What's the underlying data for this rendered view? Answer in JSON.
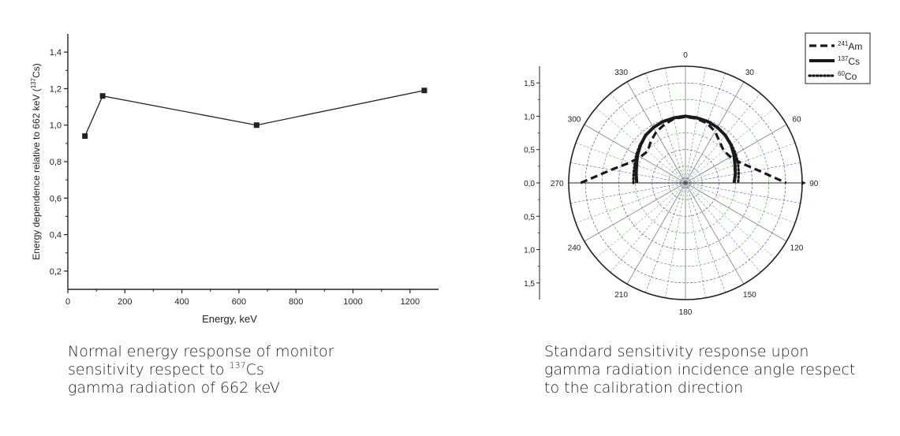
{
  "chart_data": [
    {
      "type": "line",
      "xlabel": "Energy, keV",
      "ylabel_prefix": "Energy dependence relative to 662 keV (",
      "ylabel_sup": "137",
      "ylabel_suffix": "Cs)",
      "xlim": [
        0,
        1300
      ],
      "ylim": [
        0.1,
        1.5
      ],
      "x_ticks": [
        0,
        200,
        400,
        600,
        800,
        1000,
        1200
      ],
      "x_tick_labels": [
        "0",
        "200",
        "400",
        "600",
        "800",
        "1000",
        "1200"
      ],
      "y_ticks": [
        0.2,
        0.4,
        0.6,
        0.8,
        1.0,
        1.2,
        1.4
      ],
      "y_tick_labels": [
        "0,2",
        "0,4",
        "0,6",
        "0,8",
        "1,0",
        "1,2",
        "1,4"
      ],
      "grid": false,
      "series": [
        {
          "x": [
            60,
            122,
            662,
            1250
          ],
          "y": [
            0.94,
            1.16,
            1.0,
            1.19
          ]
        }
      ]
    },
    {
      "type": "polar",
      "r_range": [
        0,
        1.75
      ],
      "angle_labels": [
        "0",
        "30",
        "60",
        "90",
        "120",
        "150",
        "180",
        "210",
        "240",
        "270",
        "300",
        "330"
      ],
      "r_tick_labels_upper": [
        "0,0",
        "0,5",
        "1,0",
        "1,5"
      ],
      "r_tick_labels_lower": [
        "0,5",
        "1,0",
        "1,5"
      ],
      "grid": true,
      "legend": "top-right",
      "series": [
        {
          "name_sup": "241",
          "name_base": "Am",
          "style": "dashed",
          "angles": [
            270,
            280,
            290,
            300,
            310,
            320,
            330,
            340,
            350,
            0,
            10,
            20,
            30,
            40,
            50,
            60,
            70,
            80,
            90
          ],
          "r": [
            1.57,
            1.13,
            0.89,
            0.78,
            0.74,
            0.81,
            0.88,
            0.93,
            0.98,
            0.99,
            0.98,
            0.95,
            0.89,
            0.8,
            0.75,
            0.78,
            0.88,
            1.1,
            1.51
          ]
        },
        {
          "name_sup": "137",
          "name_base": "Cs",
          "style": "solid",
          "angles": [
            270,
            280,
            290,
            300,
            310,
            320,
            330,
            340,
            350,
            0,
            10,
            20,
            30,
            40,
            50,
            60,
            70,
            80,
            90
          ],
          "r": [
            0.73,
            0.75,
            0.78,
            0.83,
            0.88,
            0.93,
            0.96,
            0.98,
            0.99,
            1.0,
            0.99,
            0.98,
            0.96,
            0.93,
            0.89,
            0.84,
            0.79,
            0.76,
            0.73
          ]
        },
        {
          "name_sup": "60",
          "name_base": "Co",
          "style": "dotted",
          "angles": [
            270,
            280,
            290,
            300,
            310,
            320,
            330,
            340,
            350,
            0,
            10,
            20,
            30,
            40,
            50,
            60,
            70,
            80,
            90
          ],
          "r": [
            0.78,
            0.79,
            0.81,
            0.85,
            0.89,
            0.93,
            0.96,
            0.98,
            0.99,
            1.0,
            0.99,
            0.98,
            0.96,
            0.93,
            0.9,
            0.87,
            0.84,
            0.81,
            0.79
          ]
        }
      ]
    }
  ],
  "captions": {
    "left": {
      "line1": "Normal energy response of monitor",
      "line2_prefix": "sensitivity respect to ",
      "line2_sup": "137",
      "line2_suffix": "Cs",
      "line3": "gamma radiation of 662 keV"
    },
    "right": {
      "line1": "Standard sensitivity response upon",
      "line2": "gamma radiation incidence angle respect",
      "line3": "to the calibration direction"
    }
  }
}
